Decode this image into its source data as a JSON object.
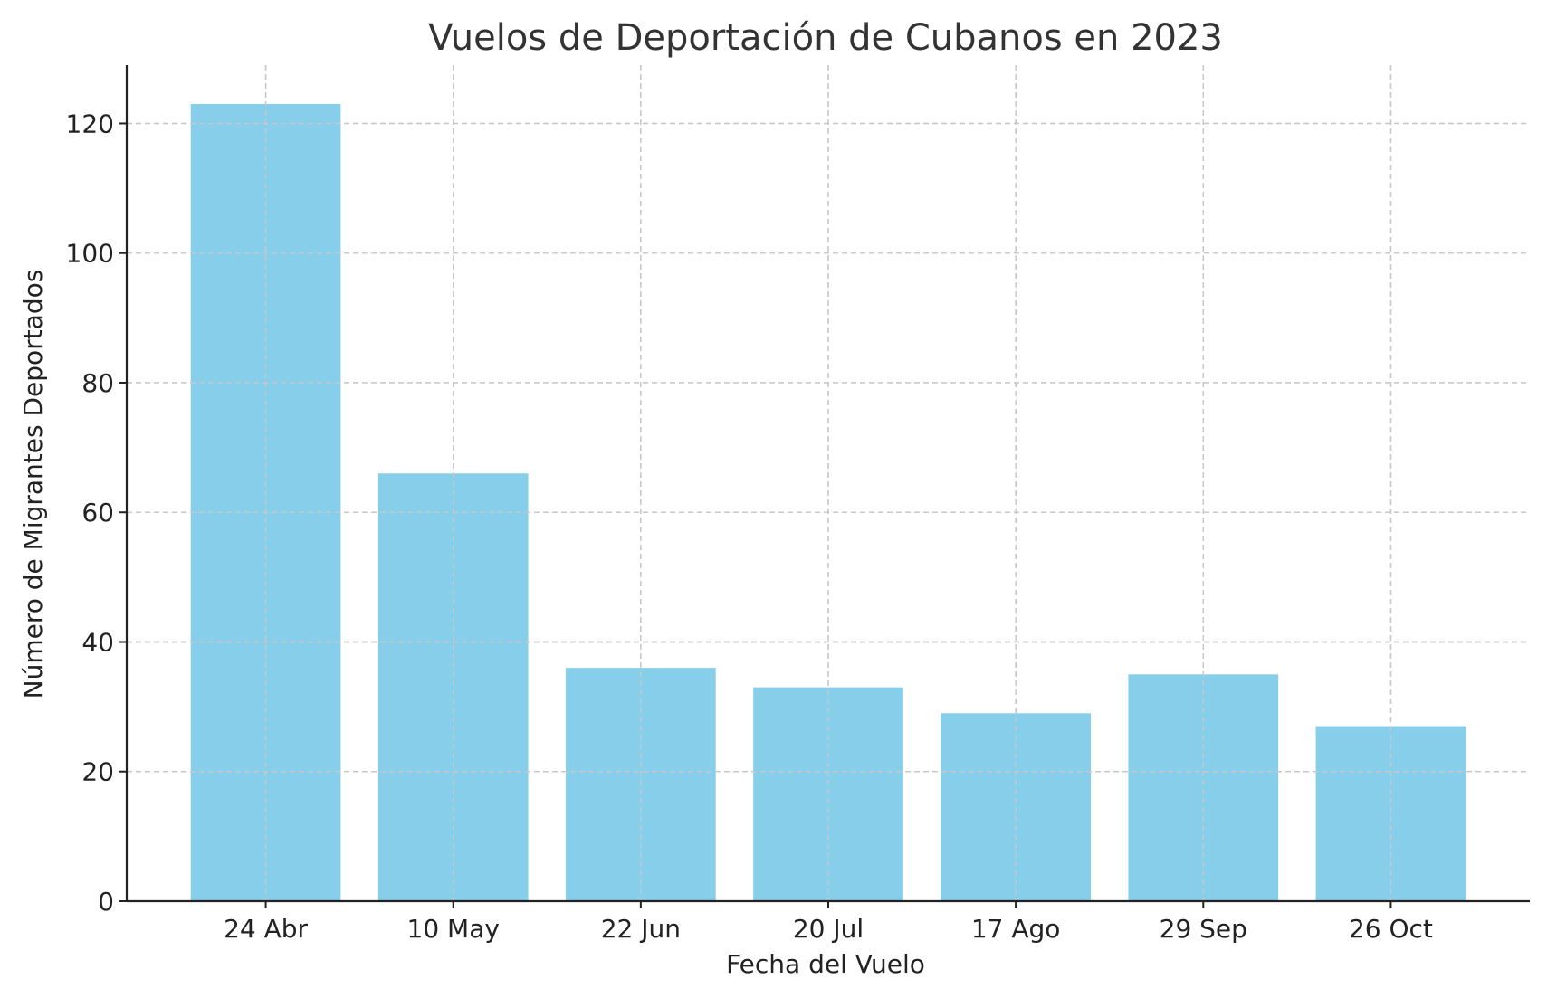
{
  "chart_data": {
    "type": "bar",
    "title": "Vuelos de Deportación de Cubanos en 2023",
    "xlabel": "Fecha del Vuelo",
    "ylabel": "Número de Migrantes Deportados",
    "categories": [
      "24 Abr",
      "10 May",
      "22 Jun",
      "20 Jul",
      "17 Ago",
      "29 Sep",
      "26 Oct"
    ],
    "values": [
      123,
      66,
      36,
      33,
      29,
      35,
      27
    ],
    "ylim": [
      0,
      129
    ],
    "yticks": [
      0,
      20,
      40,
      60,
      80,
      100,
      120
    ],
    "bar_color": "#87CEEB",
    "grid": true
  }
}
